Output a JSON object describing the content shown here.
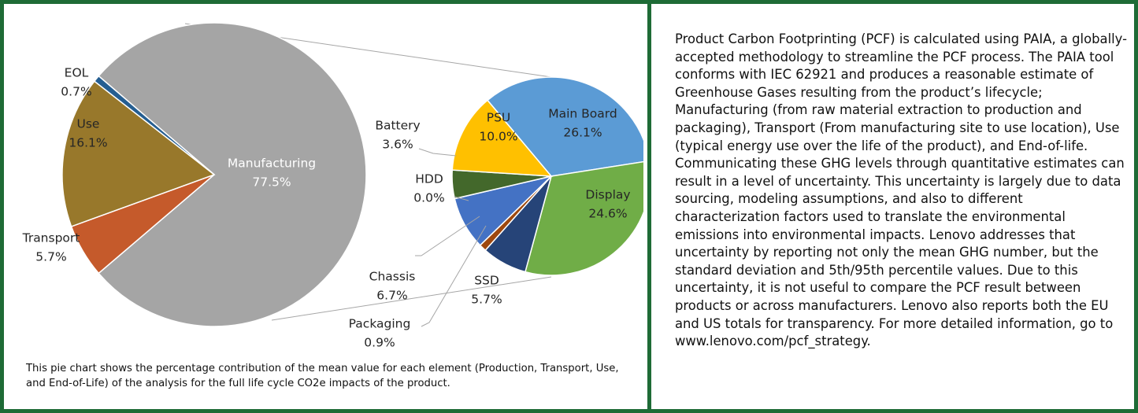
{
  "chart_data": [
    {
      "type": "pie",
      "categories": [
        "Manufacturing",
        "Transport",
        "Use",
        "EOL"
      ],
      "values": [
        77.5,
        5.7,
        16.1,
        0.7
      ],
      "value_labels": [
        "77.5%",
        "5.7%",
        "16.1%",
        "0.7%"
      ],
      "colors": [
        "#a5a5a5",
        "#c55a2b",
        "#98782b",
        "#255e91"
      ]
    },
    {
      "type": "pie",
      "categories": [
        "Main Board",
        "Display",
        "SSD",
        "Packaging",
        "Chassis",
        "HDD",
        "Battery",
        "PSU"
      ],
      "values": [
        26.1,
        24.6,
        5.7,
        0.9,
        6.7,
        0.0,
        3.6,
        10.0
      ],
      "value_labels": [
        "26.1%",
        "24.6%",
        "5.7%",
        "0.9%",
        "6.7%",
        "0.0%",
        "3.6%",
        "10.0%"
      ],
      "colors": [
        "#5b9bd5",
        "#70ad47",
        "#264478",
        "#9e480e",
        "#4472c4",
        "#636363",
        "#43682b",
        "#ffc000"
      ]
    }
  ],
  "caption": "This pie chart shows the percentage contribution of the mean value for each element (Production, Transport, Use, and End-of-Life) of the analysis for the full life cycle CO2e impacts of the product.",
  "description": "Product Carbon Footprinting (PCF) is calculated using PAIA, a globally-accepted methodology to streamline the PCF process. The PAIA tool conforms with IEC 62921 and produces a reasonable estimate of Greenhouse Gases resulting from the product’s lifecycle; Manufacturing (from raw material extraction to production and packaging), Transport (From manufacturing site to use location), Use (typical energy use over the life of the product), and End-of-life. Communicating these GHG levels through quantitative estimates can result in a level of uncertainty. This uncertainty is largely due to data sourcing, modeling assumptions, and also to different characterization factors used to translate the environmental emissions into environmental impacts. Lenovo addresses that uncertainty by reporting not only the mean GHG number, but the standard deviation and 5th/95th percentile values. Due to this uncertainty, it is not useful to compare the PCF result between products or across manufacturers. Lenovo also reports both the EU and US totals for transparency. For more detailed information, go to www.lenovo.com/pcf_strategy."
}
